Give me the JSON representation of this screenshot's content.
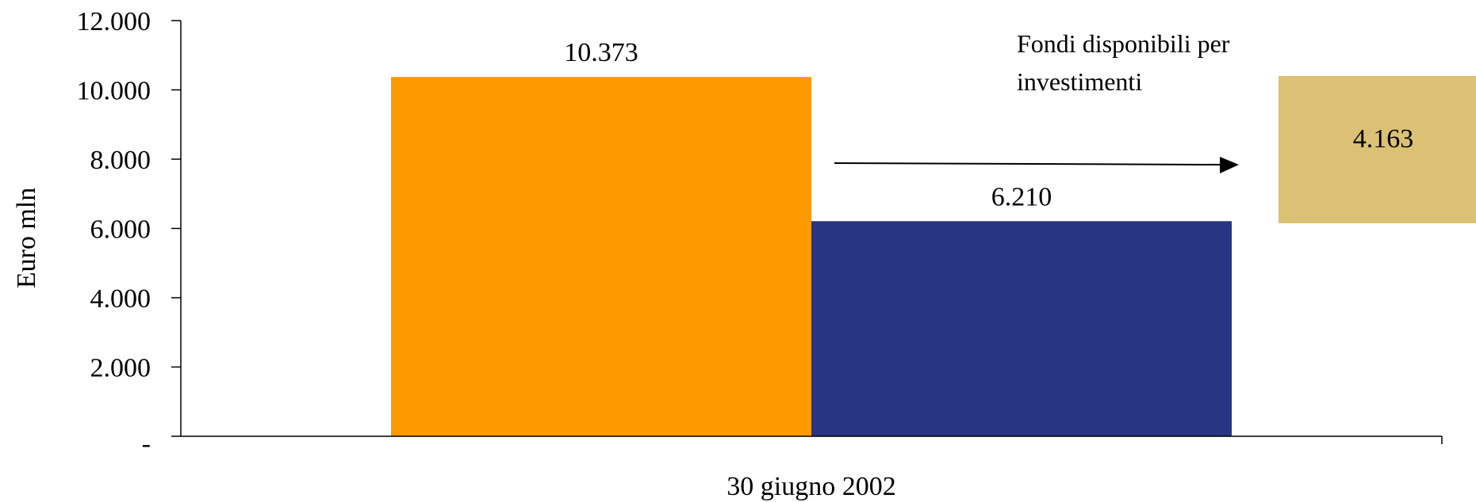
{
  "chart_data": {
    "type": "bar",
    "categories": [
      "30 giugno 2002"
    ],
    "series": [
      {
        "values": [
          10373
        ],
        "value_label": "10.373",
        "color": "#FF9900"
      },
      {
        "values": [
          6210
        ],
        "value_label": "6.210",
        "color": "#283583"
      }
    ],
    "ylabel": "Euro mln",
    "xlabel": "",
    "ylim": [
      0,
      12000
    ],
    "y_ticks": [
      {
        "value": 0,
        "label": "-"
      },
      {
        "value": 2000,
        "label": "2.000"
      },
      {
        "value": 4000,
        "label": "4.000"
      },
      {
        "value": 6000,
        "label": "6.000"
      },
      {
        "value": 8000,
        "label": "8.000"
      },
      {
        "value": 10000,
        "label": "10.000"
      },
      {
        "value": 12000,
        "label": "12.000"
      }
    ],
    "grid": false,
    "annotation": {
      "text_lines": [
        "Fondi disponibili per",
        "investimenti"
      ],
      "value": 4163,
      "value_label": "4.163",
      "color": "#DBC174"
    }
  }
}
